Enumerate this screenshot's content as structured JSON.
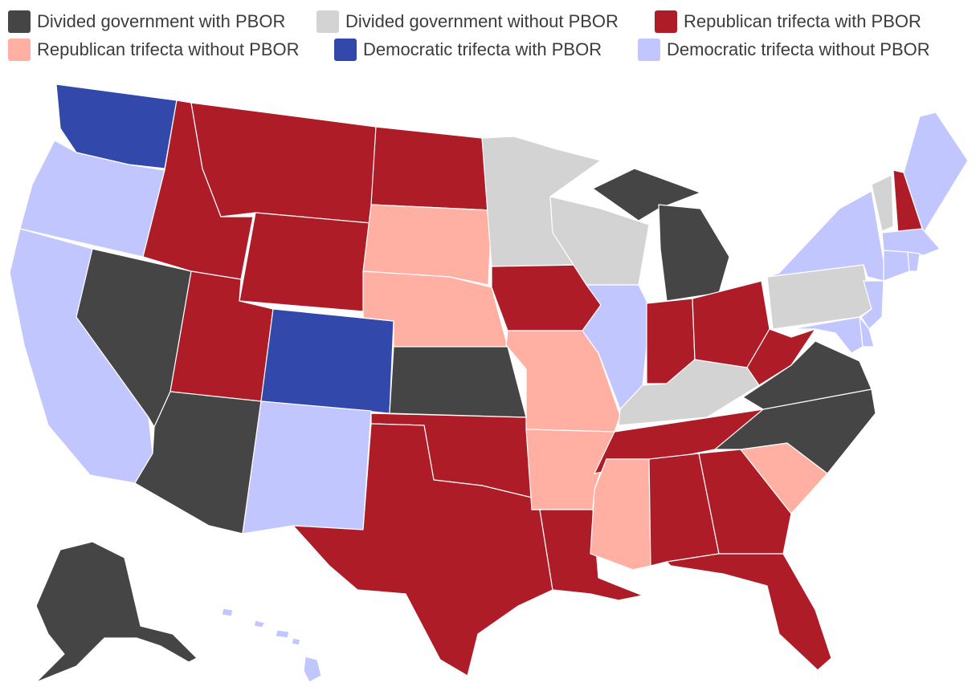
{
  "legend": [
    {
      "key": "divided_with",
      "label": "Divided government with PBOR",
      "color": "#454545"
    },
    {
      "key": "divided_without",
      "label": "Divided government without PBOR",
      "color": "#d3d3d3"
    },
    {
      "key": "rep_with",
      "label": "Republican trifecta with PBOR",
      "color": "#ad1c27"
    },
    {
      "key": "rep_without",
      "label": "Republican trifecta without PBOR",
      "color": "#ffb0a2"
    },
    {
      "key": "dem_with",
      "label": "Democratic trifecta with PBOR",
      "color": "#3248ab"
    },
    {
      "key": "dem_without",
      "label": "Democratic trifecta without PBOR",
      "color": "#c2c6ff"
    }
  ],
  "states": {
    "WA": "dem_with",
    "OR": "dem_without",
    "CA": "dem_without",
    "NV": "divided_with",
    "ID": "rep_with",
    "MT": "rep_with",
    "WY": "rep_with",
    "UT": "rep_with",
    "AZ": "divided_with",
    "CO": "dem_with",
    "NM": "dem_without",
    "ND": "rep_with",
    "SD": "rep_without",
    "NE": "rep_without",
    "KS": "divided_with",
    "OK": "rep_with",
    "TX": "rep_with",
    "MN": "divided_without",
    "IA": "rep_with",
    "MO": "rep_without",
    "AR": "rep_without",
    "LA": "rep_with",
    "WI": "divided_without",
    "IL": "dem_without",
    "MI": "divided_with",
    "IN": "rep_with",
    "OH": "rep_with",
    "KY": "divided_without",
    "TN": "rep_with",
    "MS": "rep_without",
    "AL": "rep_with",
    "GA": "rep_with",
    "FL": "rep_with",
    "SC": "rep_without",
    "NC": "divided_with",
    "VA": "divided_with",
    "WV": "rep_with",
    "PA": "divided_without",
    "NY": "dem_without",
    "VT": "divided_without",
    "NH": "rep_with",
    "ME": "dem_without",
    "MA": "dem_without",
    "RI": "dem_without",
    "CT": "dem_without",
    "NJ": "dem_without",
    "DE": "dem_without",
    "MD": "dem_without",
    "AK": "divided_with",
    "HI": "dem_without"
  }
}
